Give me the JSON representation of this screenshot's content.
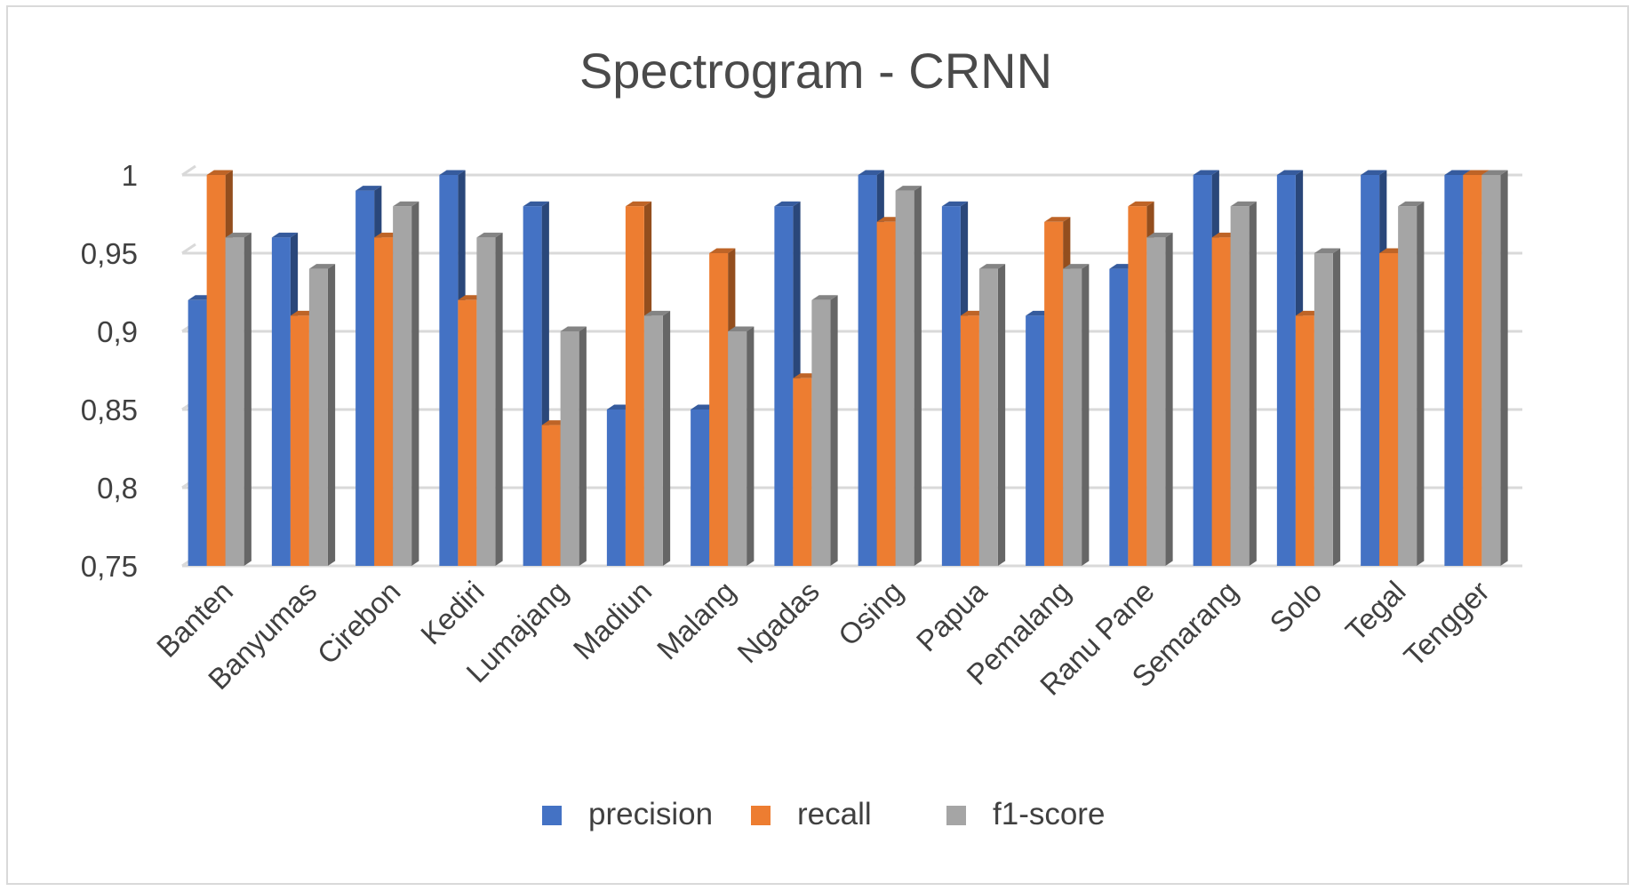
{
  "chart_data": {
    "type": "bar",
    "title": "Spectrogram - CRNN",
    "xlabel": "",
    "ylabel": "",
    "ylim": [
      0.75,
      1
    ],
    "yticks": [
      "0,75",
      "0,8",
      "0,85",
      "0,9",
      "0,95",
      "1"
    ],
    "grid": true,
    "legend_position": "bottom",
    "categories": [
      "Banten",
      "Banyumas",
      "Cirebon",
      "Kediri",
      "Lumajang",
      "Madiun",
      "Malang",
      "Ngadas",
      "Osing",
      "Papua",
      "Pemalang",
      "Ranu Pane",
      "Semarang",
      "Solo",
      "Tegal",
      "Tengger"
    ],
    "series": [
      {
        "name": "precision",
        "color": "#4472c4",
        "values": [
          0.92,
          0.96,
          0.99,
          1.0,
          0.98,
          0.85,
          0.85,
          0.98,
          1.0,
          0.98,
          0.91,
          0.94,
          1.0,
          1.0,
          1.0,
          1.0
        ]
      },
      {
        "name": "recall",
        "color": "#ed7d31",
        "values": [
          1.0,
          0.91,
          0.96,
          0.92,
          0.84,
          0.98,
          0.95,
          0.87,
          0.97,
          0.91,
          0.97,
          0.98,
          0.96,
          0.91,
          0.95,
          1.0
        ]
      },
      {
        "name": "f1-score",
        "color": "#a5a5a5",
        "values": [
          0.96,
          0.94,
          0.98,
          0.96,
          0.9,
          0.91,
          0.9,
          0.92,
          0.99,
          0.94,
          0.94,
          0.96,
          0.98,
          0.95,
          0.98,
          1.0
        ]
      }
    ]
  }
}
